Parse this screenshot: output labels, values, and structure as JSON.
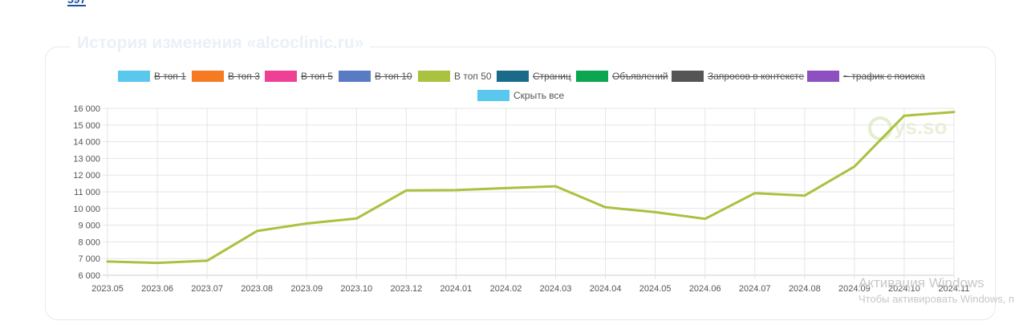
{
  "page": {
    "top_number": "597",
    "card_title": "История изменения «alcoclinic.ru»",
    "watermark_logo": "ys.so",
    "windows_activation": {
      "line1": "Активация Windows",
      "line2": "Чтобы активировать Windows, п"
    }
  },
  "legend": [
    {
      "label": "В топ 1",
      "color": "#5ac8ee",
      "hidden": true
    },
    {
      "label": "В топ 3",
      "color": "#f57a22",
      "hidden": true
    },
    {
      "label": "В топ 5",
      "color": "#ee4196",
      "hidden": true
    },
    {
      "label": "В топ 10",
      "color": "#587bc4",
      "hidden": true
    },
    {
      "label": "В топ 50",
      "color": "#a9c23f",
      "hidden": false
    },
    {
      "label": "Страниц",
      "color": "#1a6b8a",
      "hidden": true
    },
    {
      "label": "Объявлений",
      "color": "#0aa650",
      "hidden": true
    },
    {
      "label": "Запросов в контексте",
      "color": "#555555",
      "hidden": true
    },
    {
      "label": "~ трафик с поиска",
      "color": "#8e4fc0",
      "hidden": true
    },
    {
      "label": "Скрыть все",
      "color": "#5ac8ee",
      "hidden": false
    }
  ],
  "chart_data": {
    "type": "line",
    "title": "История изменения «alcoclinic.ru»",
    "x": [
      "2023.05",
      "2023.06",
      "2023.07",
      "2023.08",
      "2023.09",
      "2023.10",
      "2023.12",
      "2024.01",
      "2024.02",
      "2024.03",
      "2024.04",
      "2024.05",
      "2024.06",
      "2024.07",
      "2024.08",
      "2024.09",
      "2024.10",
      "2024.11"
    ],
    "series": [
      {
        "name": "В топ 50",
        "color": "#a9c23f",
        "values": [
          6820,
          6740,
          6870,
          8650,
          9100,
          9400,
          11080,
          11100,
          11220,
          11330,
          10070,
          9780,
          9380,
          10920,
          10770,
          12510,
          15560,
          15780
        ]
      }
    ],
    "ylim": [
      6000,
      16000
    ],
    "yticks": [
      "6 000",
      "7 000",
      "8 000",
      "9 000",
      "10 000",
      "11 000",
      "12 000",
      "13 000",
      "14 000",
      "15 000",
      "16 000"
    ],
    "ytick_values": [
      6000,
      7000,
      8000,
      9000,
      10000,
      11000,
      12000,
      13000,
      14000,
      15000,
      16000
    ],
    "grid": true,
    "legend_position": "top"
  }
}
